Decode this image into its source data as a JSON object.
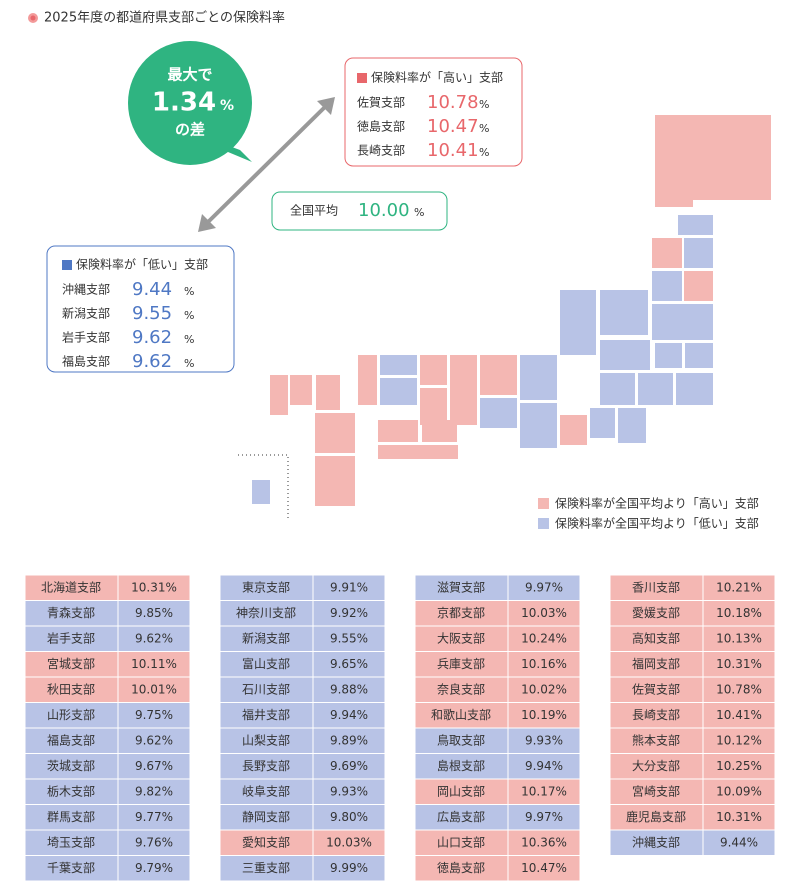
{
  "title": "2025年度の都道府県支部ごとの保険料率",
  "callout": {
    "prefix": "最大で",
    "value": "1.34",
    "unit": "%",
    "suffix": "の差"
  },
  "high_box": {
    "title": "保険料率が「高い」支部",
    "unit": "%",
    "rows": [
      [
        "佐賀支部",
        "10.78"
      ],
      [
        "徳島支部",
        "10.47"
      ],
      [
        "長崎支部",
        "10.41"
      ]
    ]
  },
  "average": {
    "label": "全国平均",
    "value": "10.00",
    "unit": "%"
  },
  "low_box": {
    "title": "保険料率が「低い」支部",
    "unit": "%",
    "rows": [
      [
        "沖縄支部",
        "9.44"
      ],
      [
        "新潟支部",
        "9.55"
      ],
      [
        "岩手支部",
        "9.62"
      ],
      [
        "福島支部",
        "9.62"
      ]
    ]
  },
  "legend": {
    "high": "保険料率が全国平均より「高い」支部",
    "low": "保険料率が全国平均より「低い」支部"
  },
  "colors": {
    "high": "#f4b7b3",
    "low": "#b8c3e6",
    "high_text": "#e8676b",
    "low_text": "#4f78c4",
    "green": "#2fb481"
  },
  "tables": [
    {
      "rows": [
        [
          "北海道支部",
          "10.31%"
        ],
        [
          "青森支部",
          "9.85%"
        ],
        [
          "岩手支部",
          "9.62%"
        ],
        [
          "宮城支部",
          "10.11%"
        ],
        [
          "秋田支部",
          "10.01%"
        ],
        [
          "山形支部",
          "9.75%"
        ],
        [
          "福島支部",
          "9.62%"
        ],
        [
          "茨城支部",
          "9.67%"
        ],
        [
          "栃木支部",
          "9.82%"
        ],
        [
          "群馬支部",
          "9.77%"
        ],
        [
          "埼玉支部",
          "9.76%"
        ],
        [
          "千葉支部",
          "9.79%"
        ]
      ]
    },
    {
      "rows": [
        [
          "東京支部",
          "9.91%"
        ],
        [
          "神奈川支部",
          "9.92%"
        ],
        [
          "新潟支部",
          "9.55%"
        ],
        [
          "富山支部",
          "9.65%"
        ],
        [
          "石川支部",
          "9.88%"
        ],
        [
          "福井支部",
          "9.94%"
        ],
        [
          "山梨支部",
          "9.89%"
        ],
        [
          "長野支部",
          "9.69%"
        ],
        [
          "岐阜支部",
          "9.93%"
        ],
        [
          "静岡支部",
          "9.80%"
        ],
        [
          "愛知支部",
          "10.03%"
        ],
        [
          "三重支部",
          "9.99%"
        ]
      ]
    },
    {
      "rows": [
        [
          "滋賀支部",
          "9.97%"
        ],
        [
          "京都支部",
          "10.03%"
        ],
        [
          "大阪支部",
          "10.24%"
        ],
        [
          "兵庫支部",
          "10.16%"
        ],
        [
          "奈良支部",
          "10.02%"
        ],
        [
          "和歌山支部",
          "10.19%"
        ],
        [
          "鳥取支部",
          "9.93%"
        ],
        [
          "島根支部",
          "9.94%"
        ],
        [
          "岡山支部",
          "10.17%"
        ],
        [
          "広島支部",
          "9.97%"
        ],
        [
          "山口支部",
          "10.36%"
        ],
        [
          "徳島支部",
          "10.47%"
        ]
      ]
    },
    {
      "rows": [
        [
          "香川支部",
          "10.21%"
        ],
        [
          "愛媛支部",
          "10.18%"
        ],
        [
          "高知支部",
          "10.13%"
        ],
        [
          "福岡支部",
          "10.31%"
        ],
        [
          "佐賀支部",
          "10.78%"
        ],
        [
          "長崎支部",
          "10.41%"
        ],
        [
          "熊本支部",
          "10.12%"
        ],
        [
          "大分支部",
          "10.25%"
        ],
        [
          "宮崎支部",
          "10.09%"
        ],
        [
          "鹿児島支部",
          "10.31%"
        ],
        [
          "沖縄支部",
          "9.44%"
        ]
      ]
    }
  ]
}
